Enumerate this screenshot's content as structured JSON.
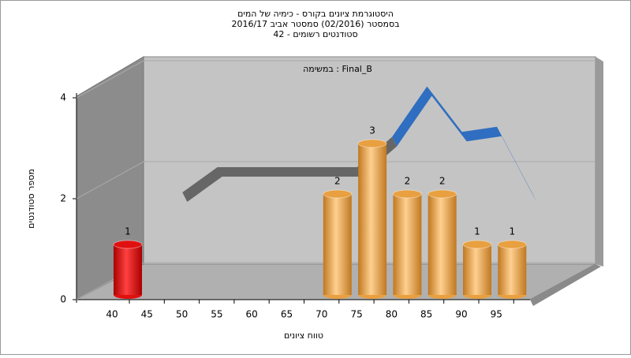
{
  "chart_data": {
    "type": "bar",
    "title": [
      "היסטוגרמת ציונים בקורס - כימיה של המים",
      "בסמסטר  (02/2016)  סמסטר אביב 2016/17",
      "סטודנטים רשומים - 42"
    ],
    "subtitle": "במשימה : Final_B",
    "y_label": "מספר סטודנטים",
    "x_label": "טווח ציונים",
    "categories": [
      40,
      45,
      50,
      55,
      60,
      65,
      70,
      75,
      80,
      85,
      90,
      95
    ],
    "values": [
      1,
      0,
      0,
      0,
      0,
      0,
      2,
      3,
      2,
      2,
      1,
      1
    ],
    "colors": [
      "#e01010",
      "#e8a040",
      "#e8a040",
      "#e8a040",
      "#e8a040",
      "#e8a040",
      "#e8a040",
      "#e8a040",
      "#e8a040",
      "#e8a040",
      "#e8a040",
      "#e8a040"
    ],
    "curve": {
      "values": [
        null,
        1.5,
        2,
        2,
        2,
        2,
        2,
        2.6,
        3.6,
        2.7,
        2.8,
        1.5
      ],
      "colors": [
        "#666666",
        "#2f6ec0"
      ]
    },
    "ylim": [
      0,
      4
    ],
    "yticks": [
      0,
      2,
      4
    ]
  }
}
